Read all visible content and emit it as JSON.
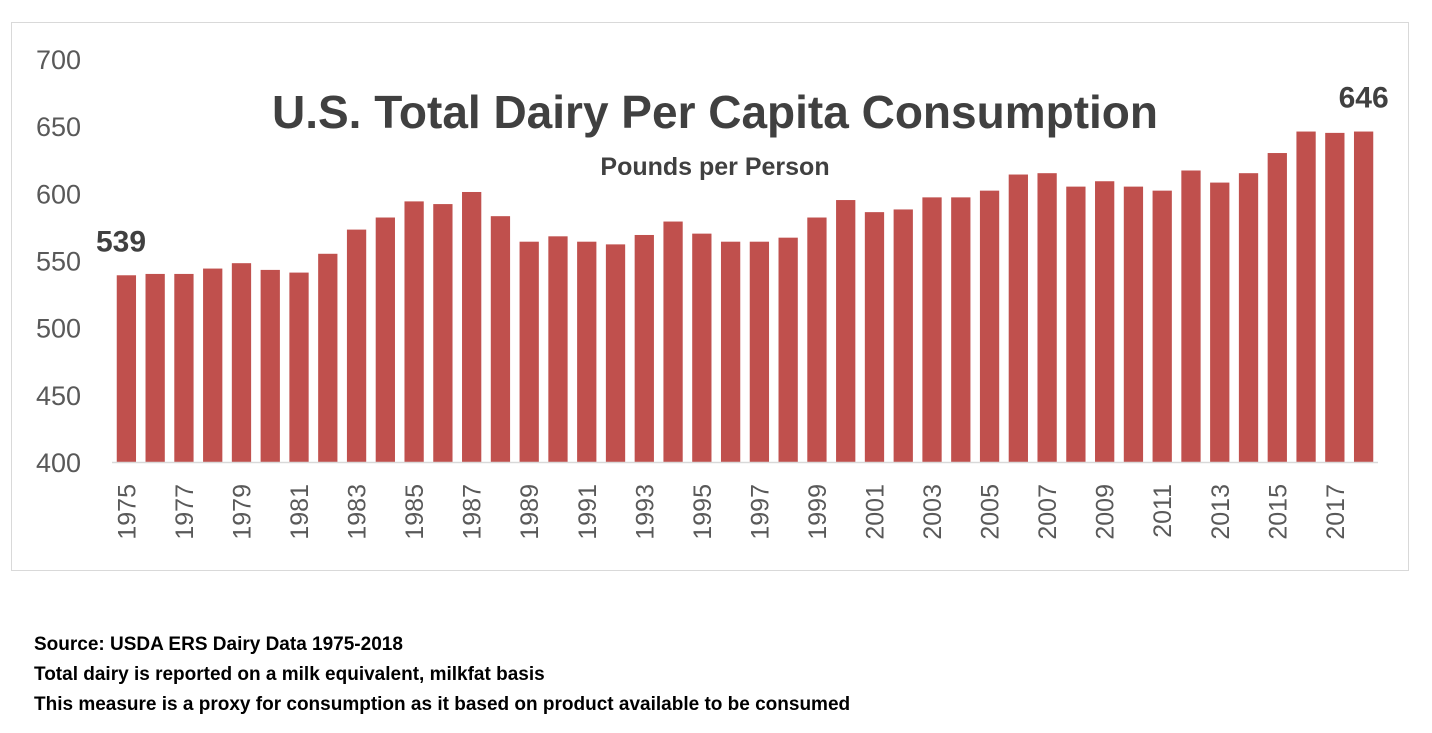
{
  "chart_data": {
    "type": "bar",
    "title": "U.S. Total Dairy Per Capita Consumption",
    "subtitle": "Pounds per Person",
    "xlabel": "",
    "ylabel": "",
    "ylim": [
      400,
      700
    ],
    "yticks": [
      "400",
      "450",
      "500",
      "550",
      "600",
      "650",
      "700"
    ],
    "grid": false,
    "bar_color": "#c0504d",
    "categories": [
      "1975",
      "1976",
      "1977",
      "1978",
      "1979",
      "1980",
      "1981",
      "1982",
      "1983",
      "1984",
      "1985",
      "1986",
      "1987",
      "1988",
      "1989",
      "1990",
      "1991",
      "1992",
      "1993",
      "1994",
      "1995",
      "1996",
      "1997",
      "1998",
      "1999",
      "2000",
      "2001",
      "2002",
      "2003",
      "2004",
      "2005",
      "2006",
      "2007",
      "2008",
      "2009",
      "2010",
      "2011",
      "2012",
      "2013",
      "2014",
      "2015",
      "2016",
      "2017",
      "2018"
    ],
    "values": [
      539,
      540,
      540,
      544,
      548,
      543,
      541,
      555,
      573,
      582,
      594,
      592,
      601,
      583,
      564,
      568,
      564,
      562,
      569,
      579,
      570,
      564,
      564,
      567,
      582,
      595,
      586,
      588,
      597,
      597,
      602,
      614,
      615,
      605,
      609,
      605,
      602,
      617,
      608,
      615,
      630,
      646,
      645,
      646
    ],
    "annotations": [
      {
        "category": "1975",
        "text": "539"
      },
      {
        "category": "2018",
        "text": "646"
      }
    ]
  },
  "notes": [
    "Source: USDA ERS Dairy Data 1975-2018",
    "Total dairy is reported on a milk equivalent, milkfat basis",
    "This measure is a proxy for consumption as it based on product available to be consumed"
  ]
}
